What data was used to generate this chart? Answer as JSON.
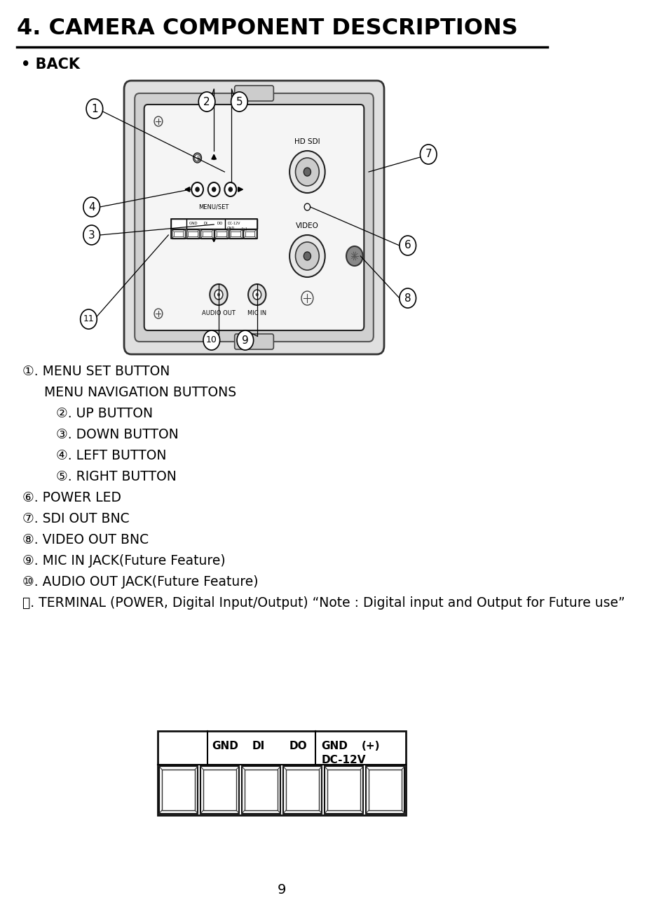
{
  "title": "4. CAMERA COMPONENT DESCRIPTIONS",
  "subtitle": "• BACK",
  "bg_color": "#ffffff",
  "text_color": "#000000",
  "title_fontsize": 23,
  "subtitle_fontsize": 15,
  "body_fontsize": 13.5,
  "page_number": "9",
  "desc_items": [
    [
      0,
      false,
      "①",
      ". MENU SET BUTTON"
    ],
    [
      1,
      false,
      "",
      "MENU NAVIGATION BUTTONS"
    ],
    [
      2,
      false,
      "②",
      ". UP BUTTON"
    ],
    [
      2,
      false,
      "③",
      ". DOWN BUTTON"
    ],
    [
      2,
      false,
      "④",
      ". LEFT BUTTON"
    ],
    [
      2,
      false,
      "⑤",
      ". RIGHT BUTTON"
    ],
    [
      0,
      false,
      "⑥",
      ". POWER LED"
    ],
    [
      0,
      false,
      "⑦",
      ". SDI OUT BNC"
    ],
    [
      0,
      false,
      "⑧",
      ". VIDEO OUT BNC"
    ],
    [
      0,
      false,
      "⑨",
      ". MIC IN JACK(Future Feature)"
    ],
    [
      0,
      false,
      "⑩",
      ". AUDIO OUT JACK(Future Feature)"
    ],
    [
      0,
      false,
      "⑪",
      ". TERMINAL (POWER, Digital Input/Output) “Note : Digital input and Output for Future use”"
    ]
  ]
}
